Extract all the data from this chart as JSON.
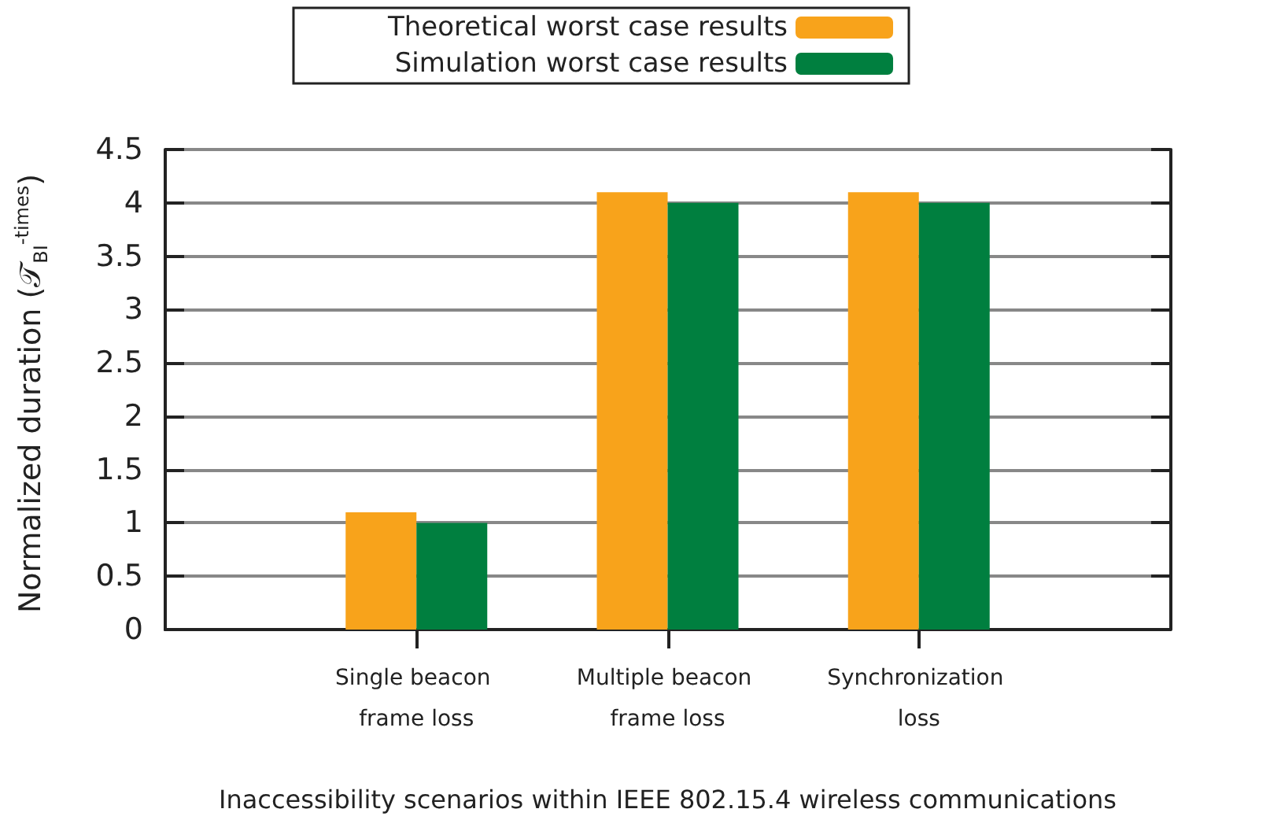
{
  "chart_data": {
    "type": "bar",
    "xlabel": "Inaccessibility scenarios within IEEE 802.15.4 wireless communications",
    "ylabel": "Normalized duration (𝒯$_{BI}$$^{-times}$)",
    "categories": [
      null,
      "Single beacon frame loss",
      "Multiple beacon frame loss",
      "Synchronization loss",
      null
    ],
    "series": [
      {
        "name": "Theoretical worst case results",
        "color": "#f8a31b",
        "values": [
          null,
          1.1,
          4.1,
          4.1,
          null
        ]
      },
      {
        "name": "Simulation worst case results",
        "color": "#007f3f",
        "values": [
          null,
          1.0,
          4.0,
          4.0,
          null
        ]
      }
    ],
    "ylim": [
      0,
      4.5
    ],
    "yticks": [
      0,
      0.5,
      1,
      1.5,
      2,
      2.5,
      3,
      3.5,
      4,
      4.5
    ],
    "grid": "y",
    "legend": "top"
  }
}
